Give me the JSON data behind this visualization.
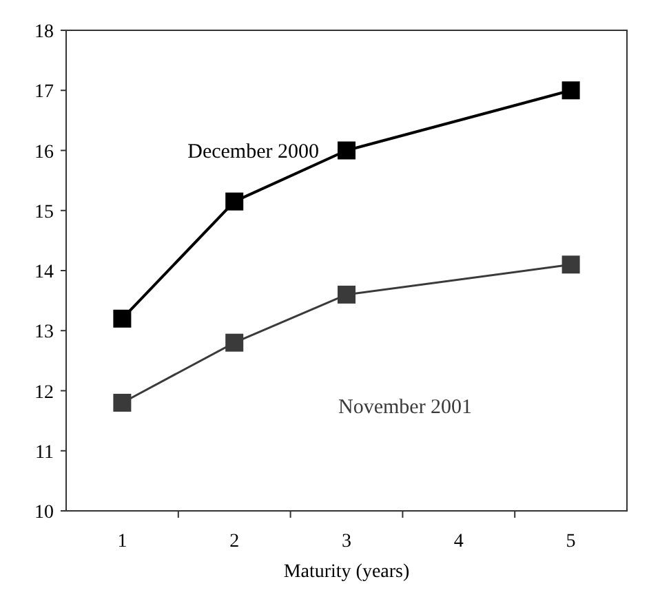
{
  "chart_data": {
    "type": "line",
    "xlabel": "Maturity (years)",
    "x": [
      1,
      2,
      3,
      5
    ],
    "xlim": [
      0.5,
      5.5
    ],
    "xticks": [
      1,
      2,
      3,
      4,
      5,
      {
        "value": 1.5,
        "label": null
      },
      {
        "value": 2.5,
        "label": null
      },
      {
        "value": 3.5,
        "label": null
      },
      {
        "value": 4.5,
        "label": null
      }
    ],
    "ylim": [
      10,
      18
    ],
    "yticks": [
      10,
      11,
      12,
      13,
      14,
      15,
      16,
      17,
      18
    ],
    "grid": false,
    "marker": "square",
    "line_style": "solid",
    "series": [
      {
        "name": "December 2000",
        "color": "#000000",
        "values": [
          13.2,
          15.15,
          16.0,
          17.0
        ]
      },
      {
        "name": "November 2001",
        "color": "#3a3a3a",
        "values": [
          11.8,
          12.8,
          13.6,
          14.1
        ]
      }
    ]
  }
}
